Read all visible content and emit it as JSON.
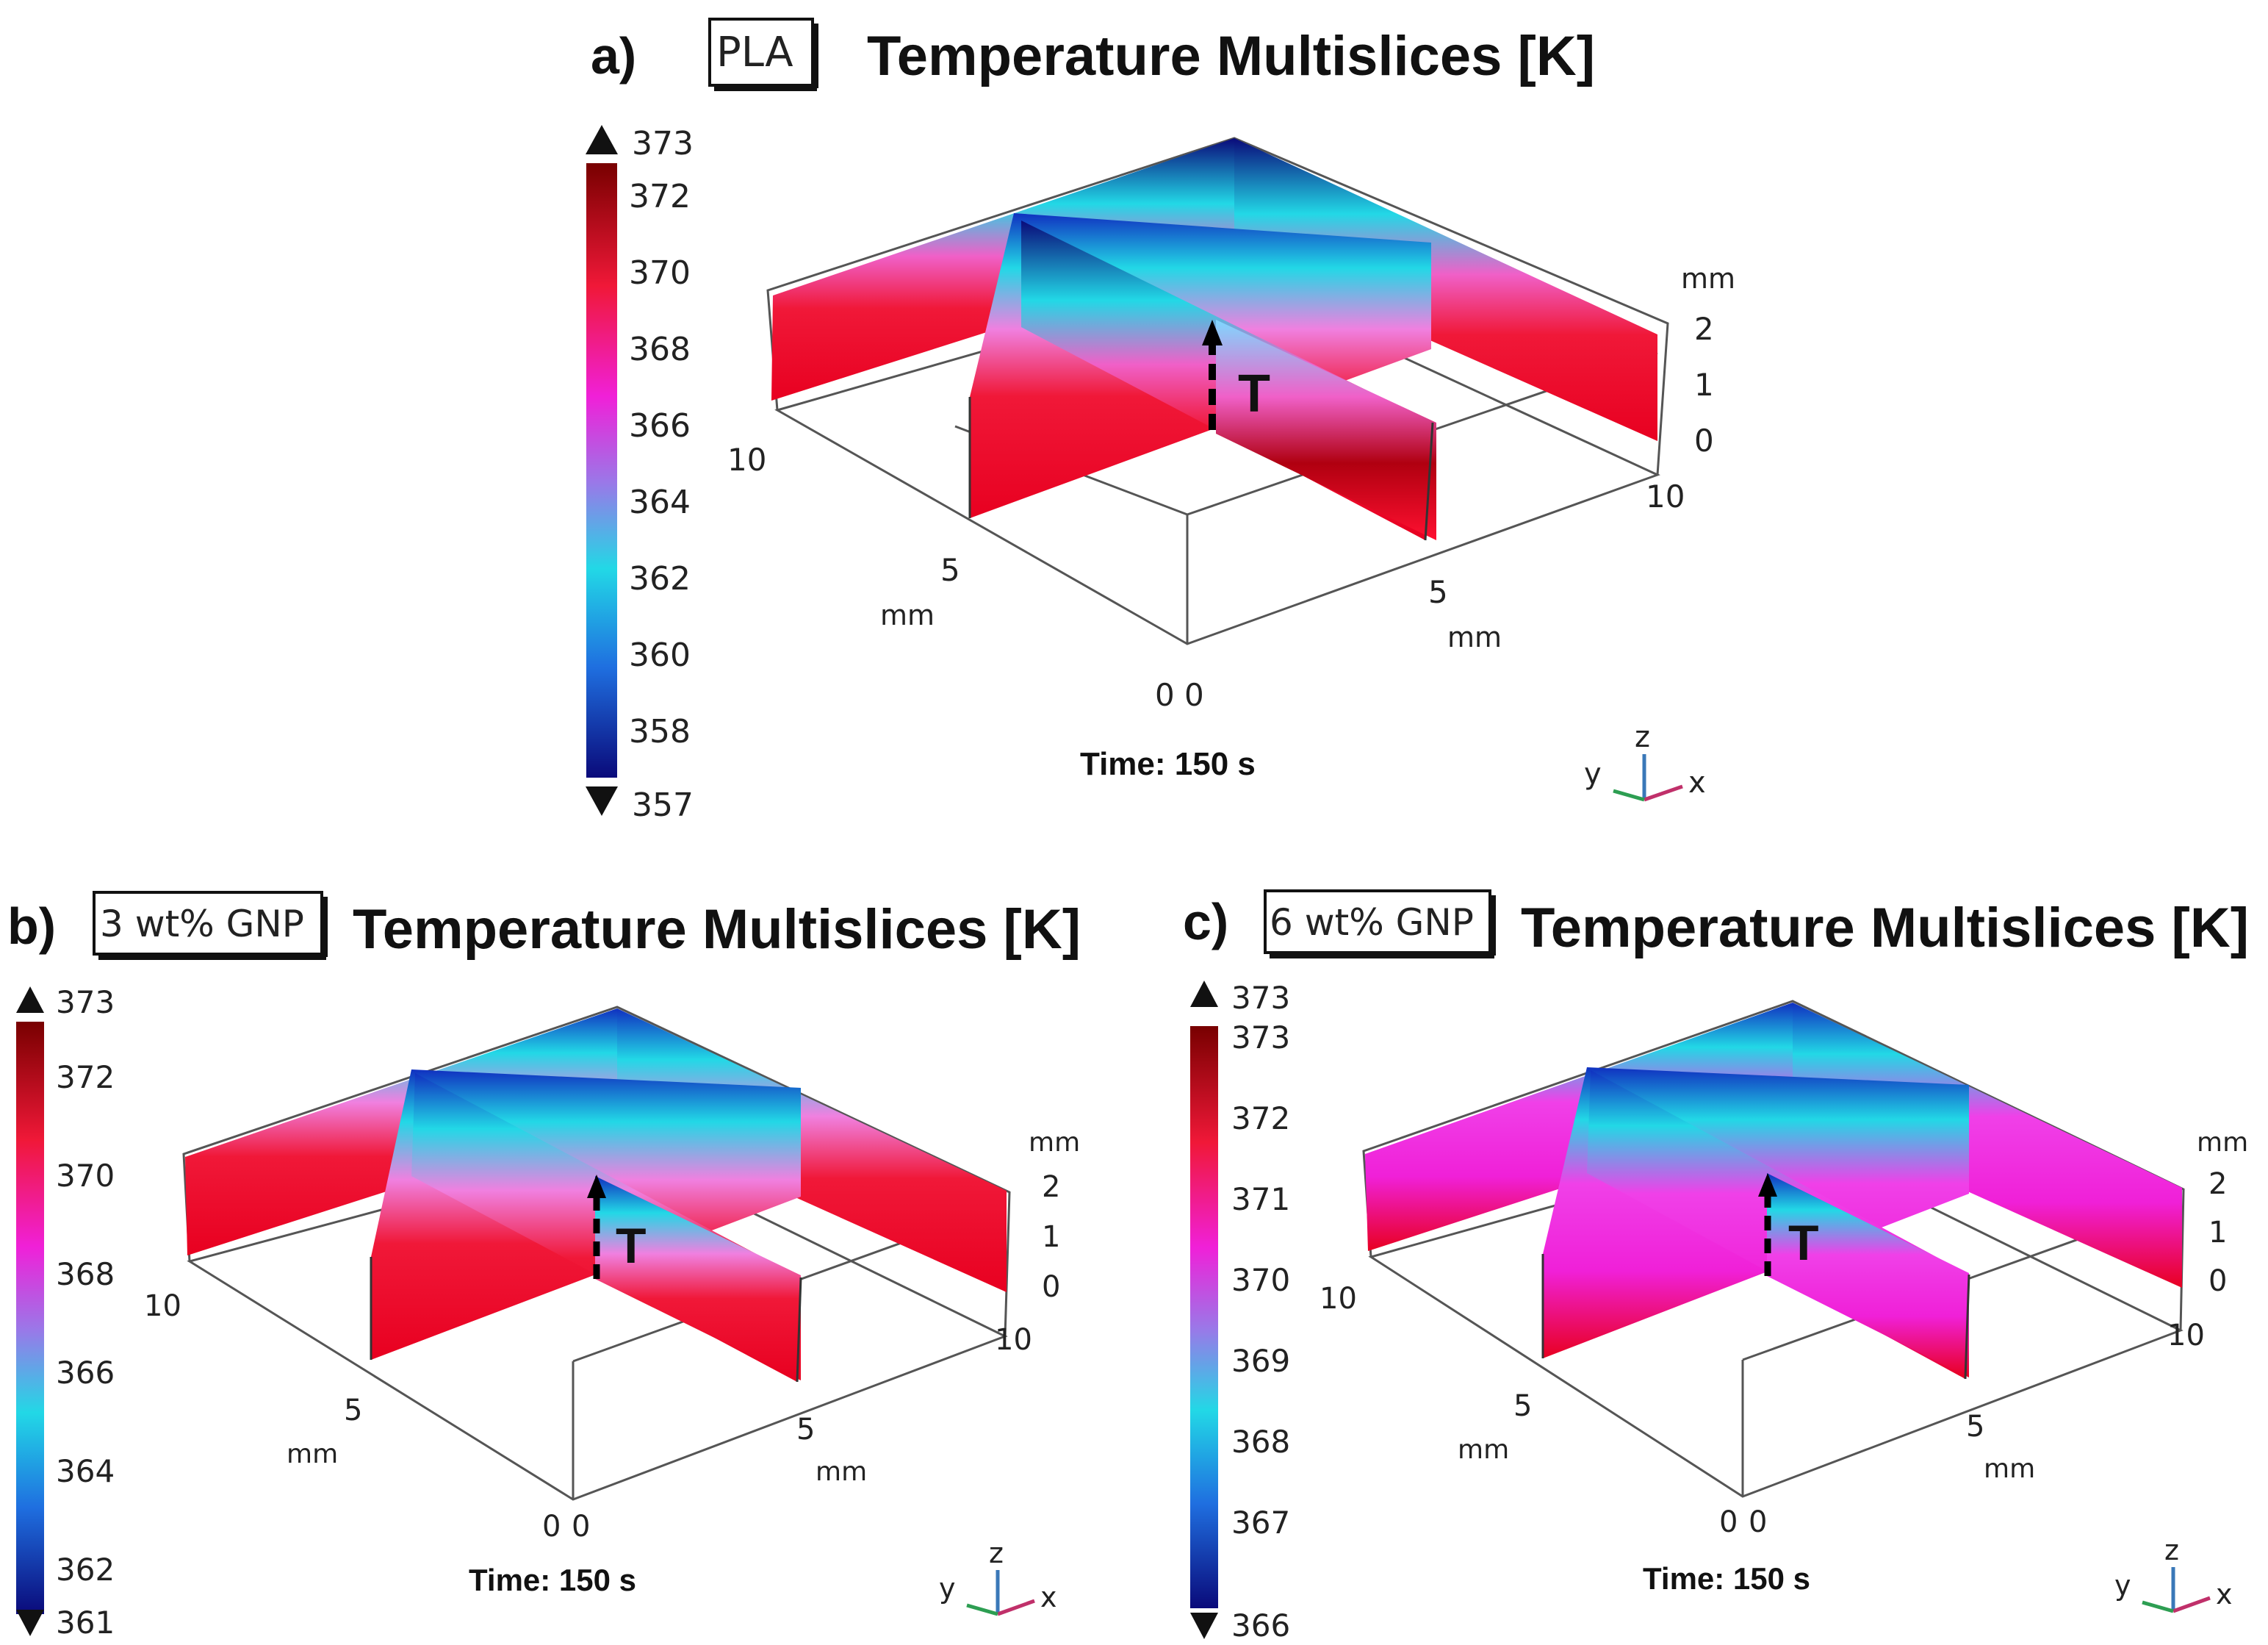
{
  "colors": {
    "low": "#0a0a7a",
    "midlow": "#1f6fe0",
    "cyan": "#22d8e6",
    "violet": "#9a78e8",
    "magenta": "#f020d8",
    "red": "#f01838",
    "dark_red": "#780000"
  },
  "panels": [
    {
      "letter": "a)",
      "material": "PLA",
      "title": "Temperature Multislices [K]",
      "colorbar": {
        "max_label": "373",
        "min_label": "357",
        "ticks": [
          "372",
          "370",
          "368",
          "366",
          "364",
          "362",
          "360",
          "358"
        ]
      },
      "axes": {
        "x_ticks": [
          "0",
          "5",
          "10"
        ],
        "y_ticks": [
          "0",
          "5",
          "10"
        ],
        "z_ticks": [
          "0",
          "1",
          "2"
        ],
        "unit": "mm"
      },
      "marker": "T",
      "time": "Time: 150 s",
      "triad": {
        "x": "x",
        "y": "y",
        "z": "z"
      }
    },
    {
      "letter": "b)",
      "material": "3 wt% GNP",
      "title": "Temperature Multislices [K]",
      "colorbar": {
        "max_label": "373",
        "min_label": "361",
        "ticks": [
          "372",
          "370",
          "368",
          "366",
          "364",
          "362"
        ]
      },
      "axes": {
        "x_ticks": [
          "0",
          "5",
          "10"
        ],
        "y_ticks": [
          "0",
          "5",
          "10"
        ],
        "z_ticks": [
          "0",
          "1",
          "2"
        ],
        "unit": "mm"
      },
      "marker": "T",
      "time": "Time: 150 s",
      "triad": {
        "x": "x",
        "y": "y",
        "z": "z"
      }
    },
    {
      "letter": "c)",
      "material": "6 wt% GNP",
      "title": "Temperature Multislices [K]",
      "colorbar": {
        "max_label": "373",
        "min_label": "366",
        "ticks": [
          "373",
          "372",
          "371",
          "370",
          "369",
          "368",
          "367"
        ]
      },
      "axes": {
        "x_ticks": [
          "0",
          "5",
          "10"
        ],
        "y_ticks": [
          "0",
          "5",
          "10"
        ],
        "z_ticks": [
          "0",
          "1",
          "2"
        ],
        "unit": "mm"
      },
      "marker": "T",
      "time": "Time: 150 s",
      "triad": {
        "x": "x",
        "y": "y",
        "z": "z"
      }
    }
  ]
}
